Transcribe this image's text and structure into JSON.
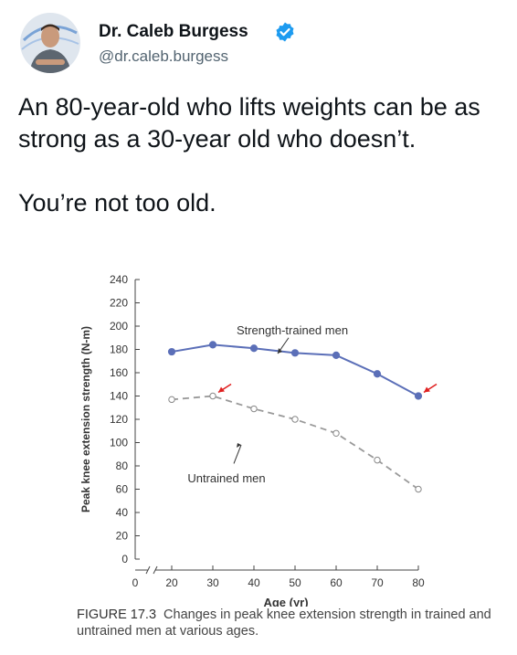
{
  "tweet": {
    "author_name": "Dr. Caleb Burgess",
    "handle": "@dr.caleb.burgess",
    "text_line1": "An 80-year-old who lifts weights can be as strong as a 30-year old who doesn’t.",
    "text_line2": "You’re not too old."
  },
  "icons": {
    "avatar": "avatar-photo",
    "verified": "verified-badge-icon"
  },
  "colors": {
    "trained_series": "#5b6fb8",
    "untrained_series": "#999999",
    "arrow": "#e02020",
    "verified": "#1d9bf0"
  },
  "chart_data": {
    "type": "line",
    "xlabel": "Age (yr)",
    "ylabel": "Peak knee extension strength (N-m)",
    "x_ticks": [
      0,
      20,
      30,
      40,
      50,
      60,
      70,
      80
    ],
    "y_ticks": [
      0,
      20,
      40,
      60,
      80,
      100,
      120,
      140,
      160,
      180,
      200,
      220,
      240
    ],
    "xlim": [
      0,
      80
    ],
    "ylim": [
      0,
      240
    ],
    "x_axis_break": true,
    "series": [
      {
        "name": "Strength-trained men",
        "style": "solid, filled markers",
        "x": [
          20,
          30,
          40,
          50,
          60,
          70,
          80
        ],
        "y": [
          178,
          184,
          181,
          177,
          175,
          159,
          140
        ]
      },
      {
        "name": "Untrained men",
        "style": "dashed, open markers",
        "x": [
          20,
          30,
          40,
          50,
          60,
          70,
          80
        ],
        "y": [
          137,
          140,
          129,
          120,
          108,
          85,
          60
        ]
      }
    ],
    "annotations": [
      {
        "text": "Strength-trained men",
        "points_to_series": 0
      },
      {
        "text": "Untrained men",
        "points_to_series": 1
      },
      {
        "type": "arrow",
        "target_x": 30,
        "target_y": 140,
        "color": "#e02020"
      },
      {
        "type": "arrow",
        "target_x": 80,
        "target_y": 140,
        "color": "#e02020"
      }
    ],
    "caption_label": "FIGURE 17.3",
    "caption_text": "Changes in peak knee extension strength in trained and untrained men at various ages."
  }
}
